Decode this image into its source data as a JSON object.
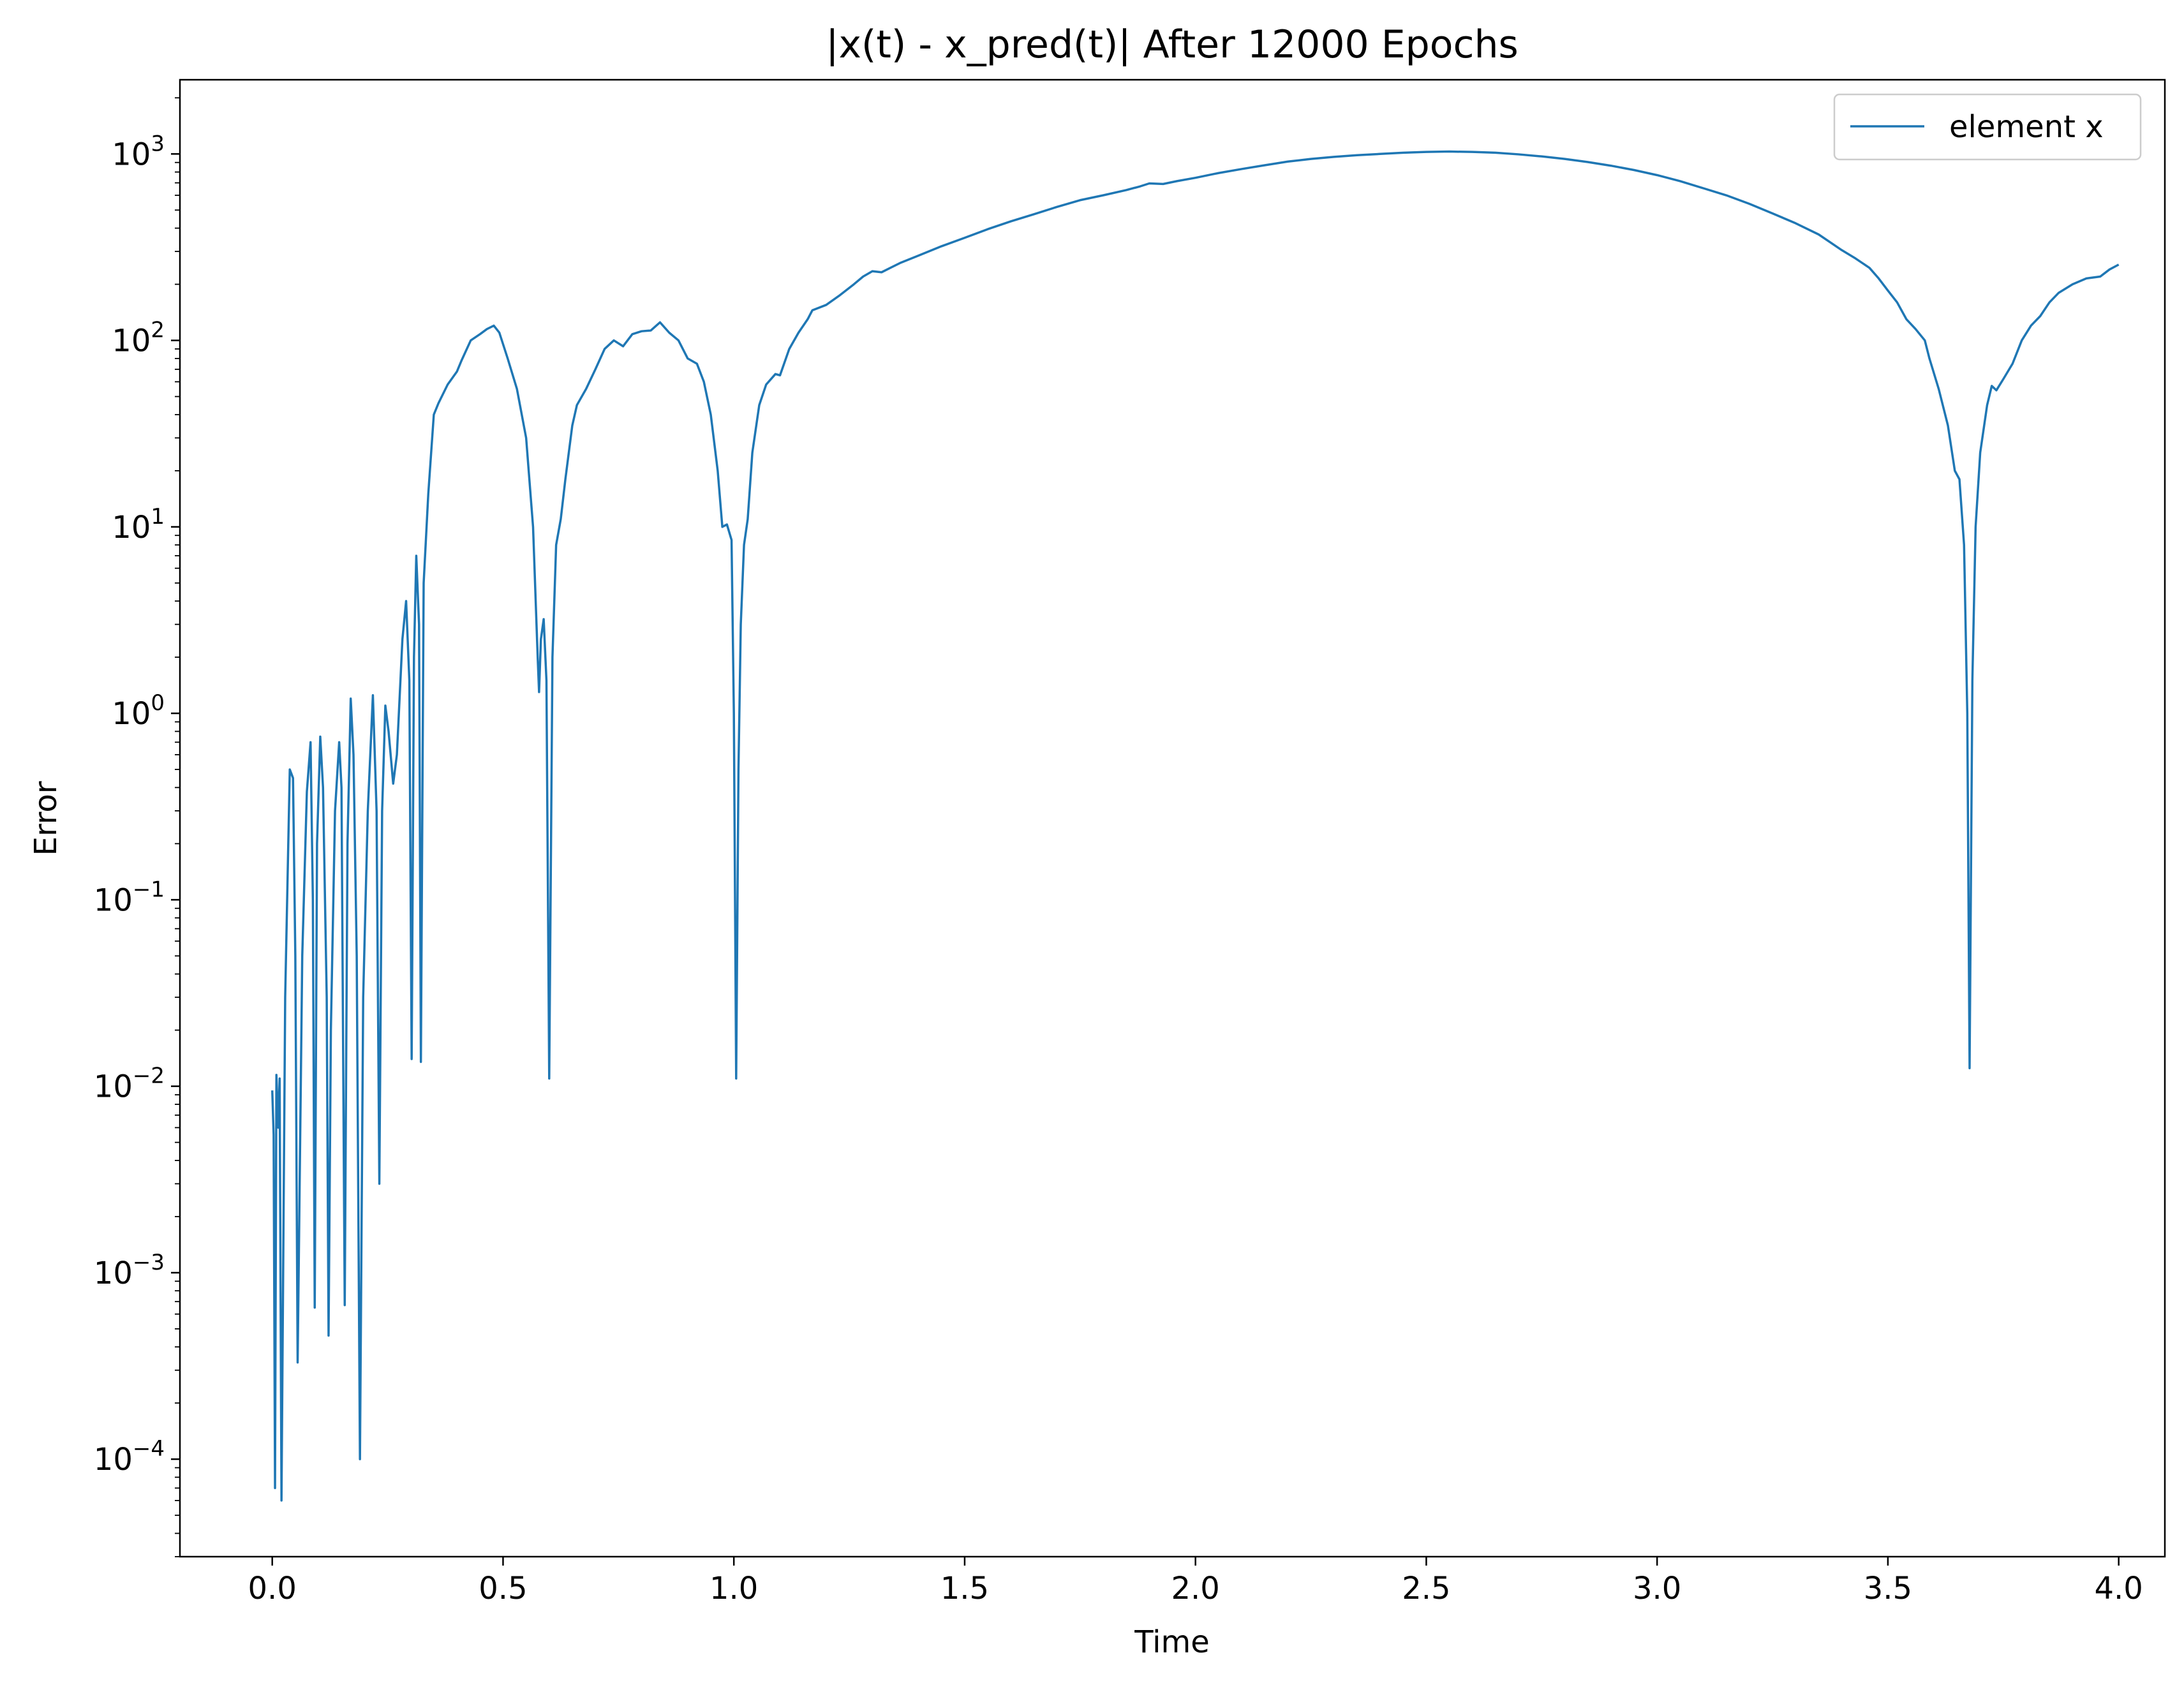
{
  "chart_data": {
    "type": "line",
    "title": "|x(t) - x_pred(t)| After 12000 Epochs",
    "xlabel": "Time",
    "ylabel": "Error",
    "yscale": "log",
    "xlim": [
      -0.2,
      4.1
    ],
    "ylim": [
      3e-05,
      2500
    ],
    "x_ticks": [
      "0.0",
      "0.5",
      "1.0",
      "1.5",
      "2.0",
      "2.5",
      "3.0",
      "3.5",
      "4.0"
    ],
    "y_ticks": [
      {
        "value": 0.0001,
        "base": "10",
        "exp": "−4"
      },
      {
        "value": 0.001,
        "base": "10",
        "exp": "−3"
      },
      {
        "value": 0.01,
        "base": "10",
        "exp": "−2"
      },
      {
        "value": 0.1,
        "base": "10",
        "exp": "−1"
      },
      {
        "value": 1,
        "base": "10",
        "exp": "0"
      },
      {
        "value": 10,
        "base": "10",
        "exp": "1"
      },
      {
        "value": 100,
        "base": "10",
        "exp": "2"
      },
      {
        "value": 1000,
        "base": "10",
        "exp": "3"
      }
    ],
    "grid": false,
    "legend_position": "top-right",
    "series": [
      {
        "name": "element x",
        "color": "#1f77b4",
        "points": [
          [
            0.0,
            0.0095
          ],
          [
            0.003,
            0.0055
          ],
          [
            0.006,
            7e-05
          ],
          [
            0.009,
            0.0115
          ],
          [
            0.013,
            0.006
          ],
          [
            0.016,
            0.011
          ],
          [
            0.02,
            6e-05
          ],
          [
            0.028,
            0.03
          ],
          [
            0.038,
            0.5
          ],
          [
            0.045,
            0.45
          ],
          [
            0.05,
            0.05
          ],
          [
            0.055,
            0.00033
          ],
          [
            0.065,
            0.05
          ],
          [
            0.075,
            0.38
          ],
          [
            0.083,
            0.7
          ],
          [
            0.088,
            0.1
          ],
          [
            0.092,
            0.00065
          ],
          [
            0.097,
            0.2
          ],
          [
            0.104,
            0.75
          ],
          [
            0.11,
            0.4
          ],
          [
            0.118,
            0.03
          ],
          [
            0.122,
            0.00046
          ],
          [
            0.127,
            0.02
          ],
          [
            0.136,
            0.3
          ],
          [
            0.145,
            0.7
          ],
          [
            0.15,
            0.4
          ],
          [
            0.157,
            0.00067
          ],
          [
            0.163,
            0.2
          ],
          [
            0.17,
            1.2
          ],
          [
            0.176,
            0.6
          ],
          [
            0.183,
            0.05
          ],
          [
            0.19,
            0.0001
          ],
          [
            0.197,
            0.03
          ],
          [
            0.207,
            0.3
          ],
          [
            0.218,
            1.25
          ],
          [
            0.226,
            0.3
          ],
          [
            0.232,
            0.003
          ],
          [
            0.238,
            0.3
          ],
          [
            0.245,
            1.1
          ],
          [
            0.252,
            0.8
          ],
          [
            0.262,
            0.42
          ],
          [
            0.27,
            0.6
          ],
          [
            0.282,
            2.5
          ],
          [
            0.29,
            4.0
          ],
          [
            0.297,
            1.5
          ],
          [
            0.302,
            0.014
          ],
          [
            0.307,
            2.0
          ],
          [
            0.312,
            7.0
          ],
          [
            0.318,
            3.0
          ],
          [
            0.322,
            0.0135
          ],
          [
            0.328,
            5.0
          ],
          [
            0.338,
            15
          ],
          [
            0.35,
            40
          ],
          [
            0.36,
            46
          ],
          [
            0.38,
            58
          ],
          [
            0.4,
            68
          ],
          [
            0.41,
            78
          ],
          [
            0.43,
            100
          ],
          [
            0.45,
            108
          ],
          [
            0.465,
            115
          ],
          [
            0.48,
            120
          ],
          [
            0.492,
            110
          ],
          [
            0.51,
            80
          ],
          [
            0.53,
            55
          ],
          [
            0.55,
            30
          ],
          [
            0.565,
            10
          ],
          [
            0.575,
            2.0
          ],
          [
            0.578,
            1.3
          ],
          [
            0.582,
            2.5
          ],
          [
            0.588,
            3.2
          ],
          [
            0.594,
            1.5
          ],
          [
            0.6,
            0.011
          ],
          [
            0.607,
            2.0
          ],
          [
            0.615,
            8.0
          ],
          [
            0.625,
            11
          ],
          [
            0.635,
            18
          ],
          [
            0.65,
            35
          ],
          [
            0.66,
            45
          ],
          [
            0.68,
            55
          ],
          [
            0.7,
            70
          ],
          [
            0.72,
            90
          ],
          [
            0.74,
            100
          ],
          [
            0.76,
            93
          ],
          [
            0.78,
            108
          ],
          [
            0.8,
            112
          ],
          [
            0.82,
            113
          ],
          [
            0.84,
            125
          ],
          [
            0.86,
            110
          ],
          [
            0.88,
            100
          ],
          [
            0.9,
            80
          ],
          [
            0.92,
            75
          ],
          [
            0.935,
            60
          ],
          [
            0.95,
            40
          ],
          [
            0.965,
            20
          ],
          [
            0.975,
            10
          ],
          [
            0.985,
            10.3
          ],
          [
            0.995,
            8.5
          ],
          [
            1.0,
            1.0
          ],
          [
            1.005,
            0.011
          ],
          [
            1.01,
            0.5
          ],
          [
            1.015,
            3.0
          ],
          [
            1.022,
            8.0
          ],
          [
            1.03,
            11
          ],
          [
            1.04,
            25
          ],
          [
            1.055,
            45
          ],
          [
            1.07,
            58
          ],
          [
            1.09,
            66
          ],
          [
            1.1,
            65
          ],
          [
            1.12,
            90
          ],
          [
            1.14,
            110
          ],
          [
            1.16,
            130
          ],
          [
            1.17,
            145
          ],
          [
            1.2,
            155
          ],
          [
            1.23,
            175
          ],
          [
            1.26,
            200
          ],
          [
            1.28,
            220
          ],
          [
            1.3,
            235
          ],
          [
            1.32,
            232
          ],
          [
            1.36,
            260
          ],
          [
            1.4,
            285
          ],
          [
            1.45,
            320
          ],
          [
            1.5,
            355
          ],
          [
            1.55,
            395
          ],
          [
            1.6,
            435
          ],
          [
            1.65,
            475
          ],
          [
            1.7,
            520
          ],
          [
            1.75,
            565
          ],
          [
            1.8,
            600
          ],
          [
            1.85,
            640
          ],
          [
            1.88,
            670
          ],
          [
            1.9,
            695
          ],
          [
            1.93,
            690
          ],
          [
            1.96,
            715
          ],
          [
            2.0,
            745
          ],
          [
            2.05,
            790
          ],
          [
            2.1,
            830
          ],
          [
            2.15,
            870
          ],
          [
            2.2,
            910
          ],
          [
            2.25,
            940
          ],
          [
            2.3,
            965
          ],
          [
            2.35,
            985
          ],
          [
            2.4,
            1000
          ],
          [
            2.45,
            1015
          ],
          [
            2.5,
            1025
          ],
          [
            2.55,
            1030
          ],
          [
            2.6,
            1025
          ],
          [
            2.65,
            1015
          ],
          [
            2.7,
            995
          ],
          [
            2.75,
            970
          ],
          [
            2.8,
            940
          ],
          [
            2.85,
            905
          ],
          [
            2.9,
            865
          ],
          [
            2.95,
            820
          ],
          [
            3.0,
            770
          ],
          [
            3.05,
            715
          ],
          [
            3.1,
            655
          ],
          [
            3.15,
            600
          ],
          [
            3.2,
            540
          ],
          [
            3.25,
            480
          ],
          [
            3.3,
            425
          ],
          [
            3.35,
            370
          ],
          [
            3.4,
            305
          ],
          [
            3.43,
            275
          ],
          [
            3.46,
            245
          ],
          [
            3.48,
            215
          ],
          [
            3.5,
            185
          ],
          [
            3.52,
            160
          ],
          [
            3.54,
            130
          ],
          [
            3.56,
            115
          ],
          [
            3.58,
            100
          ],
          [
            3.59,
            80
          ],
          [
            3.61,
            55
          ],
          [
            3.63,
            35
          ],
          [
            3.645,
            20
          ],
          [
            3.655,
            18
          ],
          [
            3.665,
            8
          ],
          [
            3.672,
            1.0
          ],
          [
            3.677,
            0.0125
          ],
          [
            3.683,
            1.5
          ],
          [
            3.69,
            10
          ],
          [
            3.7,
            25
          ],
          [
            3.715,
            45
          ],
          [
            3.725,
            57
          ],
          [
            3.735,
            54
          ],
          [
            3.75,
            62
          ],
          [
            3.77,
            75
          ],
          [
            3.79,
            100
          ],
          [
            3.81,
            120
          ],
          [
            3.83,
            135
          ],
          [
            3.85,
            160
          ],
          [
            3.87,
            180
          ],
          [
            3.9,
            200
          ],
          [
            3.93,
            215
          ],
          [
            3.96,
            220
          ],
          [
            3.98,
            240
          ],
          [
            4.0,
            255
          ]
        ]
      }
    ]
  }
}
